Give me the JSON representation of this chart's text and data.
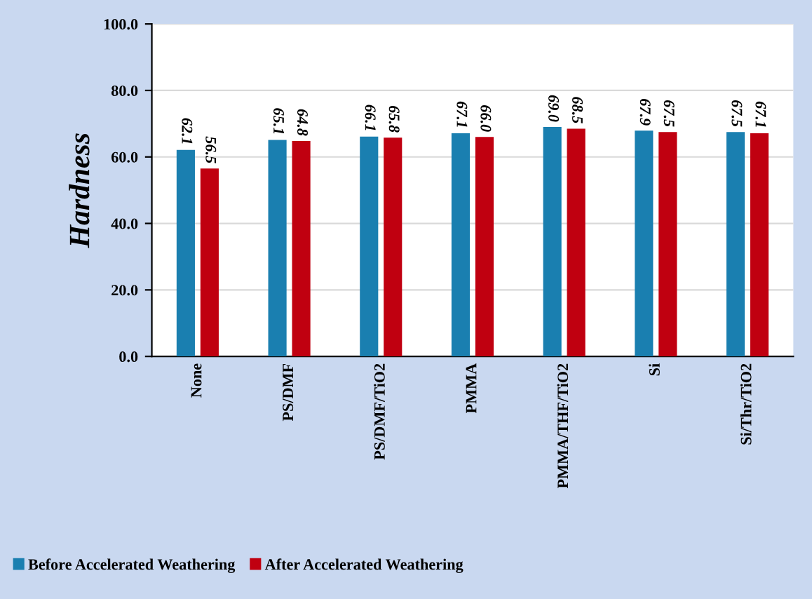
{
  "chart_data": {
    "type": "bar",
    "ylabel": "Hardness",
    "categories": [
      "None",
      "PS/DMF",
      "PS/DMF/TiO2",
      "PMMA",
      "PMMA/THF/TiO2",
      "Si",
      "Si/Thr/TiO2"
    ],
    "series": [
      {
        "name": "Before Accelerated Weathering",
        "color": "#1a7fb0",
        "values": [
          62.1,
          65.1,
          66.1,
          67.1,
          69.0,
          67.9,
          67.5
        ],
        "value_labels": [
          "62.1",
          "65.1",
          "66.1",
          "67.1",
          "69.0",
          "67.9",
          "67.5"
        ]
      },
      {
        "name": "After Accelerated Weathering",
        "color": "#c00010",
        "values": [
          56.5,
          64.8,
          65.8,
          66.0,
          68.5,
          67.5,
          67.1
        ],
        "value_labels": [
          "56.5",
          "64.8",
          "65.8",
          "66.0",
          "68.5",
          "67.5",
          "67.1"
        ]
      }
    ],
    "ylim": [
      0,
      100
    ],
    "yticks": [
      {
        "value": 0,
        "label": "0.0"
      },
      {
        "value": 20,
        "label": "20.0"
      },
      {
        "value": 40,
        "label": "40.0"
      },
      {
        "value": 60,
        "label": "60.0"
      },
      {
        "value": 80,
        "label": "80.0"
      },
      {
        "value": 100,
        "label": "100.0"
      }
    ],
    "grid": "y",
    "legend": "bottom left"
  }
}
